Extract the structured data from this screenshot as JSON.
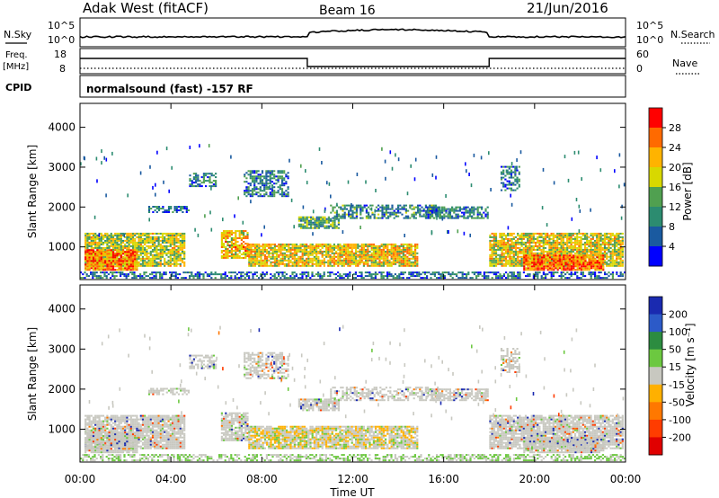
{
  "header": {
    "title": "Adak West (fitACF)",
    "beam": "Beam 16",
    "date": "21/Jun/2016"
  },
  "panels": {
    "nsky_label": "N.Sky",
    "nsearch_label": "N.Search",
    "freq_label_line1": "Freq.",
    "freq_label_line2": "[MHz]",
    "nave_label": "Nave",
    "cpid_label": "CPID",
    "cpid_text": "normalsound (fast) -157 RF",
    "noise_left_ticks": [
      "10^5",
      "10^0"
    ],
    "noise_right_ticks": [
      "10^5",
      "10^0"
    ],
    "freq_ticks": [
      "18",
      "8"
    ],
    "nave_ticks": [
      "60",
      "0"
    ]
  },
  "chart_data": [
    {
      "type": "heatmap",
      "name": "power",
      "ylabel": "Slant Range [km]",
      "yticks": [
        "4000",
        "3000",
        "2000",
        "1000"
      ],
      "ytick_values": [
        4000,
        3000,
        2000,
        1000
      ],
      "ylim": [
        180,
        4600
      ],
      "colorbar_label": "Power [dB]",
      "colorbar_ticks": [
        "28",
        "24",
        "20",
        "16",
        "12",
        "8",
        "4"
      ],
      "colorbar_colors": [
        "#ff0000",
        "#ff6a00",
        "#ffb300",
        "#d8d800",
        "#50a050",
        "#2c8c70",
        "#1a5aa0",
        "#0000ff"
      ]
    },
    {
      "type": "heatmap",
      "name": "velocity",
      "ylabel": "Slant Range [km]",
      "yticks": [
        "4000",
        "3000",
        "2000",
        "1000"
      ],
      "ytick_values": [
        4000,
        3000,
        2000,
        1000
      ],
      "ylim": [
        180,
        4600
      ],
      "colorbar_label": "Velocity [m s⁻¹]",
      "colorbar_ticks": [
        "200",
        "100",
        "50",
        "15",
        "-15",
        "-50",
        "-100",
        "-200"
      ],
      "colorbar_colors": [
        "#1a2ab0",
        "#2c5ac8",
        "#2c8c40",
        "#6cc840",
        "#c8c8c0",
        "#ffb000",
        "#ff7800",
        "#ff3c00",
        "#e00000"
      ]
    }
  ],
  "x_axis": {
    "xlabel": "Time UT",
    "ticks": [
      "00:00",
      "04:00",
      "08:00",
      "12:00",
      "16:00",
      "20:00",
      "00:00"
    ],
    "tick_hours": [
      0,
      4,
      8,
      12,
      16,
      20,
      24
    ],
    "xlim_hours": [
      0,
      24
    ]
  }
}
